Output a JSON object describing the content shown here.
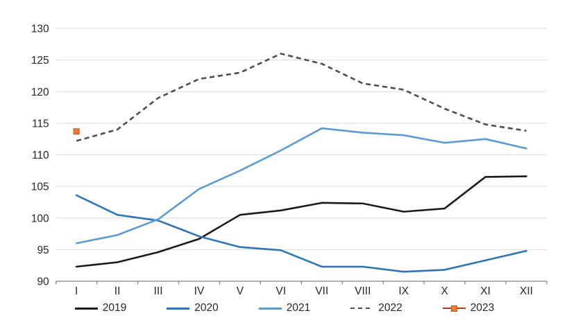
{
  "chart_data": {
    "type": "line",
    "title": "",
    "xlabel": "",
    "ylabel": "",
    "categories": [
      "I",
      "II",
      "III",
      "IV",
      "V",
      "VI",
      "VII",
      "VIII",
      "IX",
      "X",
      "XI",
      "XII"
    ],
    "y_ticks": [
      130,
      125,
      120,
      115,
      110,
      105,
      100,
      95,
      90
    ],
    "ylim": [
      90,
      130
    ],
    "grid": "horizontal",
    "legend_position": "bottom",
    "series": [
      {
        "name": "2019",
        "style": "solid",
        "color": "#1a1a1a",
        "values": [
          92.3,
          93.0,
          94.6,
          96.7,
          100.5,
          101.2,
          102.4,
          102.3,
          101.0,
          101.5,
          106.5,
          106.6
        ]
      },
      {
        "name": "2020",
        "style": "solid",
        "color": "#2e75b6",
        "values": [
          103.6,
          100.5,
          99.6,
          97.1,
          95.4,
          94.9,
          92.3,
          92.3,
          91.5,
          91.8,
          93.3,
          94.8
        ]
      },
      {
        "name": "2021",
        "style": "solid",
        "color": "#5b9bd5",
        "values": [
          96.0,
          97.3,
          99.8,
          104.6,
          107.5,
          110.7,
          114.2,
          113.5,
          113.1,
          111.9,
          112.5,
          111.0
        ]
      },
      {
        "name": "2022",
        "style": "dashed",
        "color": "#4d4d4d",
        "values": [
          112.2,
          114.0,
          119.0,
          122.0,
          123.0,
          126.0,
          124.4,
          121.3,
          120.3,
          117.3,
          114.8,
          113.8
        ]
      },
      {
        "name": "2023",
        "style": "marker",
        "color": "#b23a26",
        "marker_fill": "#ed7d31",
        "marker_border": "#c8511c",
        "values": [
          113.7,
          null,
          null,
          null,
          null,
          null,
          null,
          null,
          null,
          null,
          null,
          null
        ]
      }
    ]
  },
  "colors": {
    "background": "#ffffff",
    "gridline": "#d9d9d9",
    "axis_line": "#808080",
    "tick_text": "#262626"
  }
}
